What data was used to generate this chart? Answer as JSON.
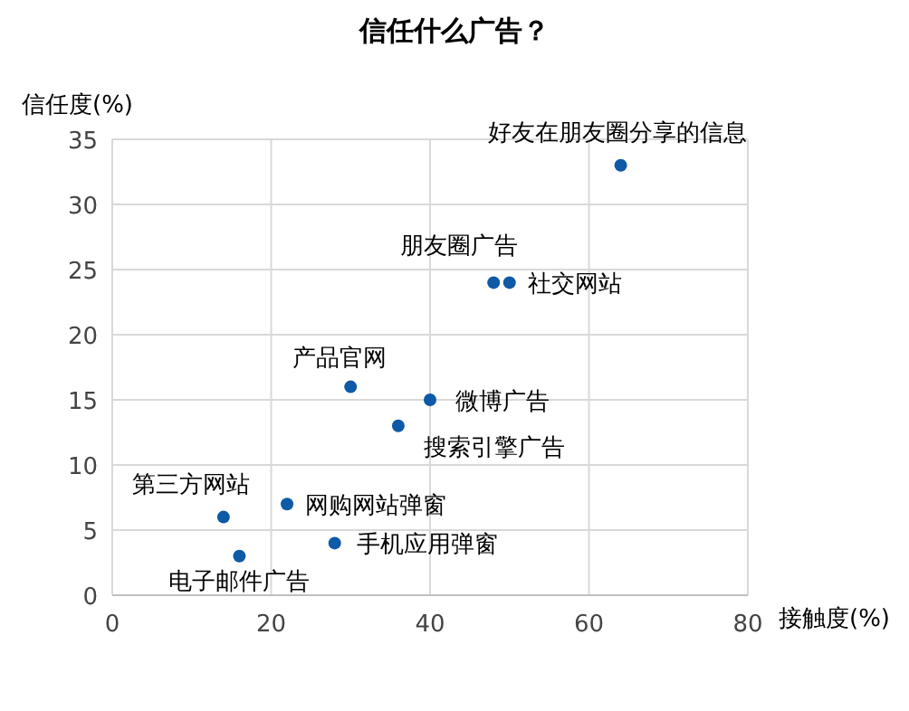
{
  "chart_data": {
    "type": "scatter",
    "title": "信任什么广告？",
    "xlabel": "接触度(%)",
    "ylabel": "信任度(%)",
    "x": [
      64,
      48,
      50,
      30,
      40,
      36,
      14,
      22,
      28,
      16
    ],
    "values": [
      33,
      24,
      24,
      16,
      15,
      13,
      6,
      7,
      4,
      3
    ],
    "color": "#0e5aa7",
    "marker": "circle",
    "grid": true,
    "xlim": [
      0,
      80
    ],
    "xticks": [
      0,
      20,
      40,
      60,
      80
    ],
    "ylim": [
      0,
      35
    ],
    "yticks": [
      0,
      5,
      10,
      15,
      20,
      25,
      30,
      35
    ],
    "annotations": [
      {
        "text": "好友在朋友圈分享的信息",
        "x": 64,
        "y": 33
      },
      {
        "text": "朋友圈广告",
        "x": 48,
        "y": 24
      },
      {
        "text": "社交网站",
        "x": 50,
        "y": 24
      },
      {
        "text": "产品官网",
        "x": 30,
        "y": 16
      },
      {
        "text": "微博广告",
        "x": 40,
        "y": 15
      },
      {
        "text": "搜索引擎广告",
        "x": 36,
        "y": 13
      },
      {
        "text": "第三方网站",
        "x": 14,
        "y": 6
      },
      {
        "text": "网购网站弹窗",
        "x": 22,
        "y": 7
      },
      {
        "text": "手机应用弹窗",
        "x": 28,
        "y": 4
      },
      {
        "text": "电子邮件广告",
        "x": 16,
        "y": 3
      }
    ]
  }
}
